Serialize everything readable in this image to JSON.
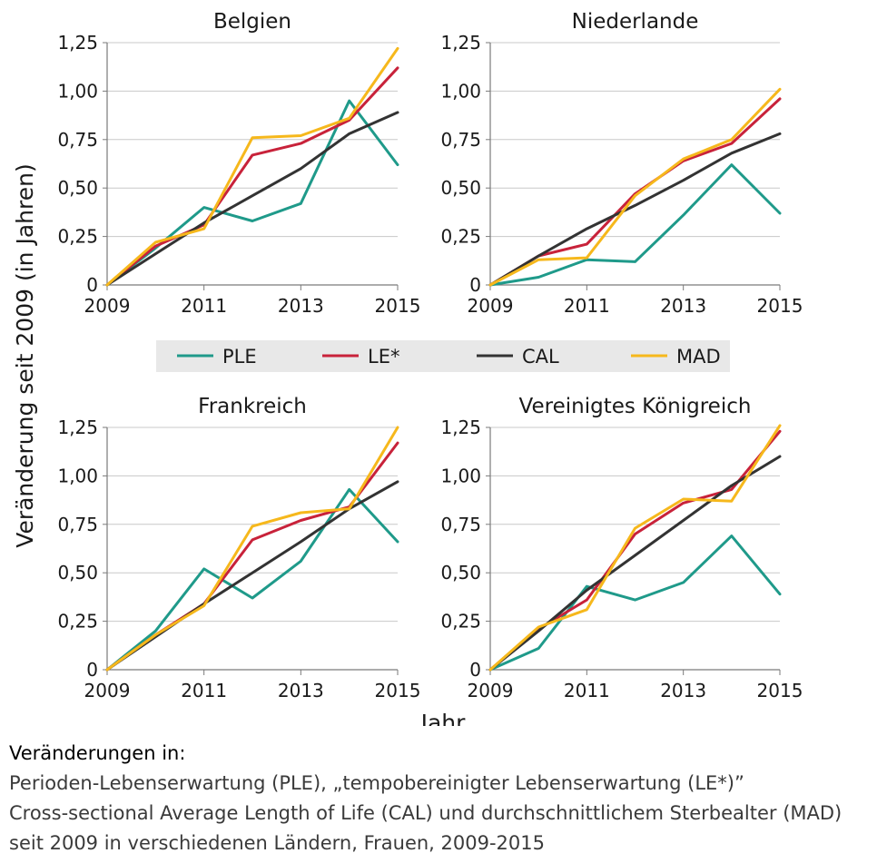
{
  "chart_data": {
    "type": "line",
    "x_ticks": [
      "2009",
      "2011",
      "2013",
      "2015"
    ],
    "y_ticks": [
      "0",
      "0,25",
      "0,50",
      "0,75",
      "1,00",
      "1,25"
    ],
    "xlabel": "Jahr",
    "ylabel": "Veränderung seit 2009 (in Jahren)",
    "xlim": [
      2009,
      2015
    ],
    "ylim": [
      0,
      1.25
    ],
    "grid": "horizontal",
    "legend_position": "center",
    "legend": [
      {
        "key": "ple",
        "name": "PLE",
        "color": "#1f9a8a"
      },
      {
        "key": "le",
        "name": "LE*",
        "color": "#c8223a"
      },
      {
        "key": "cal",
        "name": "CAL",
        "color": "#333333"
      },
      {
        "key": "mad",
        "name": "MAD",
        "color": "#f6b81c"
      }
    ],
    "years": [
      2009,
      2010,
      2011,
      2012,
      2013,
      2014,
      2015
    ],
    "panels": [
      {
        "title": "Belgien",
        "series": {
          "ple": [
            0,
            0.19,
            0.4,
            0.33,
            0.42,
            0.95,
            0.62
          ],
          "le": [
            0,
            0.2,
            0.31,
            0.67,
            0.73,
            0.85,
            1.12
          ],
          "cal": [
            0,
            0.16,
            0.32,
            0.46,
            0.6,
            0.78,
            0.89
          ],
          "mad": [
            0,
            0.22,
            0.29,
            0.76,
            0.77,
            0.86,
            1.22
          ]
        }
      },
      {
        "title": "Niederlande",
        "series": {
          "ple": [
            0,
            0.04,
            0.13,
            0.12,
            0.36,
            0.62,
            0.37
          ],
          "le": [
            0,
            0.15,
            0.21,
            0.47,
            0.64,
            0.73,
            0.96
          ],
          "cal": [
            0,
            0.15,
            0.29,
            0.41,
            0.54,
            0.68,
            0.78
          ],
          "mad": [
            0,
            0.13,
            0.14,
            0.46,
            0.65,
            0.75,
            1.01
          ]
        }
      },
      {
        "title": "Frankreich",
        "series": {
          "ple": [
            0,
            0.2,
            0.52,
            0.37,
            0.56,
            0.93,
            0.66
          ],
          "le": [
            0,
            0.18,
            0.34,
            0.67,
            0.77,
            0.84,
            1.17
          ],
          "cal": [
            0,
            0.17,
            0.34,
            0.5,
            0.66,
            0.83,
            0.97
          ],
          "mad": [
            0,
            0.18,
            0.33,
            0.74,
            0.81,
            0.83,
            1.25
          ]
        }
      },
      {
        "title": "Vereinigtes Königreich",
        "series": {
          "ple": [
            0,
            0.11,
            0.43,
            0.36,
            0.45,
            0.69,
            0.39
          ],
          "le": [
            0,
            0.21,
            0.36,
            0.7,
            0.86,
            0.93,
            1.23
          ],
          "cal": [
            0,
            0.2,
            0.41,
            0.59,
            0.77,
            0.95,
            1.1
          ],
          "mad": [
            0,
            0.22,
            0.31,
            0.73,
            0.88,
            0.87,
            1.26
          ]
        }
      }
    ]
  },
  "caption": {
    "heading": "Veränderungen in:",
    "lines": [
      "Perioden-Lebenserwartung (PLE), „tempobereinigter Lebenserwartung (LE*)”",
      "Cross-sectional Average Length of Life (CAL) und durchschnittlichem Sterbealter (MAD)",
      "seit 2009 in verschiedenen Ländern, Frauen, 2009-2015"
    ]
  },
  "colors": {
    "grid": "#c8c8c8",
    "axis": "#7a7a7a",
    "legend_background": "#e8e8e8"
  }
}
